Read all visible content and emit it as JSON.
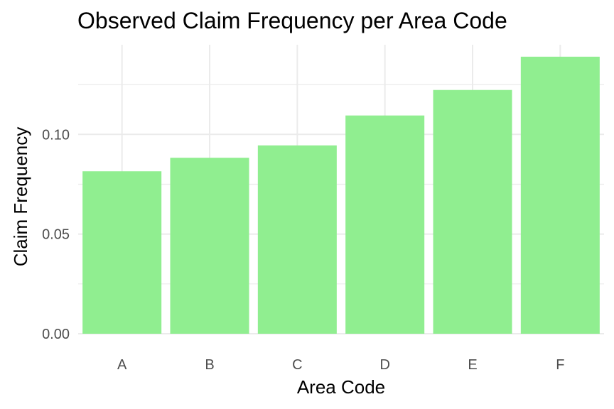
{
  "chart_data": {
    "type": "bar",
    "title": "Observed Claim Frequency per Area Code",
    "xlabel": "Area Code",
    "ylabel": "Claim Frequency",
    "categories": [
      "A",
      "B",
      "C",
      "D",
      "E",
      "F"
    ],
    "values": [
      0.0815,
      0.0883,
      0.0945,
      0.1095,
      0.1223,
      0.139
    ],
    "ylim": [
      0,
      0.145
    ],
    "yticks": [
      0.0,
      0.05,
      0.1
    ],
    "ytick_labels": [
      "0.00",
      "0.05",
      "0.10"
    ],
    "grid": true,
    "legend": "none",
    "bar_color": "#90ee90"
  }
}
